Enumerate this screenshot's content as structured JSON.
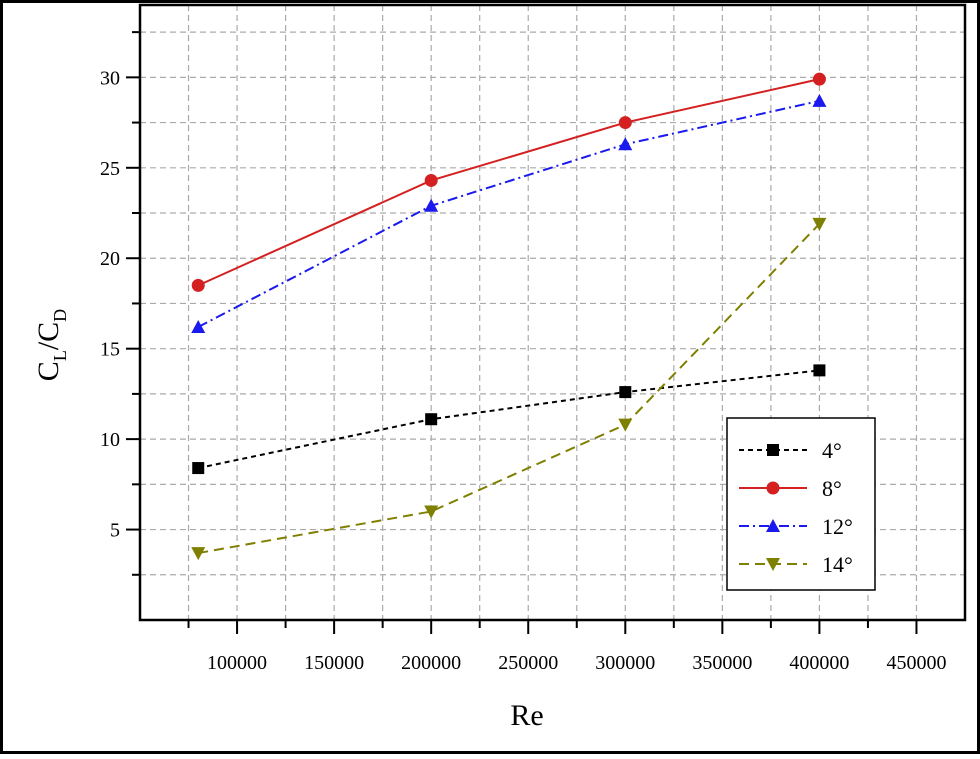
{
  "chart_data": {
    "type": "line",
    "xlabel": "Re",
    "ylabel": [
      "C",
      "L",
      "/C",
      "D"
    ],
    "x": [
      80000,
      200000,
      300000,
      400000
    ],
    "series": [
      {
        "name": "4°",
        "color": "#000000",
        "marker": "square",
        "dash": "5,4",
        "values": [
          8.4,
          11.1,
          12.6,
          13.8
        ]
      },
      {
        "name": "8°",
        "color": "#d42020",
        "marker": "circle",
        "dash": "none",
        "values": [
          18.5,
          24.3,
          27.5,
          29.9
        ]
      },
      {
        "name": "12°",
        "color": "#1a1aee",
        "marker": "triangle-up",
        "dash": "10,4,2,4",
        "values": [
          16.2,
          22.9,
          26.3,
          28.7
        ]
      },
      {
        "name": "14°",
        "color": "#808000",
        "marker": "triangle-down",
        "dash": "10,6",
        "values": [
          3.7,
          6.0,
          10.8,
          21.9
        ]
      }
    ],
    "xlim": [
      50000,
      475000
    ],
    "ylim": [
      0,
      34
    ],
    "xticks": [
      100000,
      150000,
      200000,
      250000,
      300000,
      350000,
      400000,
      450000
    ],
    "yticks": [
      5,
      10,
      15,
      20,
      25,
      30
    ],
    "grid": true,
    "legend": "lower right"
  }
}
